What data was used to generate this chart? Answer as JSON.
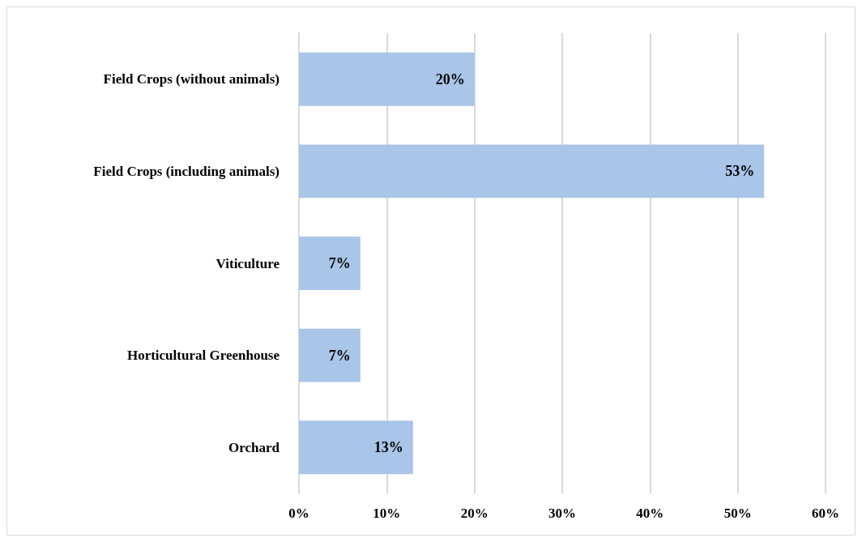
{
  "chart_data": {
    "type": "bar",
    "orientation": "horizontal",
    "categories": [
      "Field Crops (without animals)",
      "Field Crops (including animals)",
      "Viticulture",
      "Horticultural Greenhouse",
      "Orchard"
    ],
    "values": [
      20,
      53,
      7,
      7,
      13
    ],
    "value_labels": [
      "20%",
      "53%",
      "7%",
      "7%",
      "13%"
    ],
    "color": "#a9c5e8",
    "xlim": [
      0,
      60
    ],
    "xticks": [
      {
        "value": 0,
        "label": "0%"
      },
      {
        "value": 10,
        "label": "10%"
      },
      {
        "value": 20,
        "label": "20%"
      },
      {
        "value": 30,
        "label": "30%"
      },
      {
        "value": 40,
        "label": "40%"
      },
      {
        "value": 50,
        "label": "50%"
      },
      {
        "value": 60,
        "label": "60%"
      }
    ],
    "grid": "x"
  }
}
